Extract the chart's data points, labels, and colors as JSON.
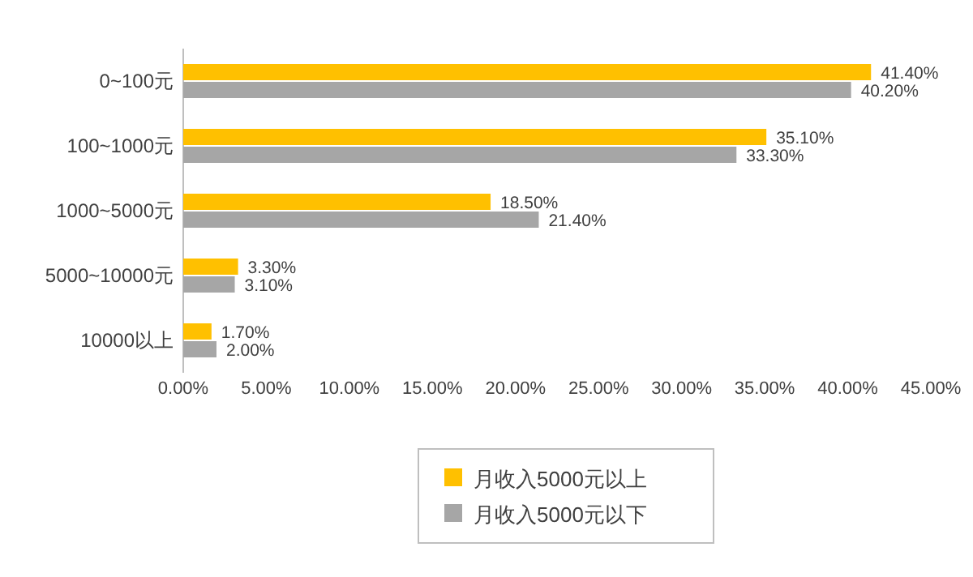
{
  "chart_data": {
    "type": "bar",
    "orientation": "horizontal",
    "categories": [
      "0~100元",
      "100~1000元",
      "1000~5000元",
      "5000~10000元",
      "10000以上"
    ],
    "series": [
      {
        "name": "月收入5000元以上",
        "color": "#ffc000",
        "values": [
          41.4,
          35.1,
          18.5,
          3.3,
          1.7
        ],
        "value_labels": [
          "41.40%",
          "35.10%",
          "18.50%",
          "3.30%",
          "1.70%"
        ]
      },
      {
        "name": "月收入5000元以下",
        "color": "#a6a6a6",
        "values": [
          40.2,
          33.3,
          21.4,
          3.1,
          2.0
        ],
        "value_labels": [
          "40.20%",
          "33.30%",
          "21.40%",
          "3.10%",
          "2.00%"
        ]
      }
    ],
    "xlim": [
      0,
      45
    ],
    "xticks": [
      {
        "value": 0,
        "label": "0.00%"
      },
      {
        "value": 5,
        "label": "5.00%"
      },
      {
        "value": 10,
        "label": "10.00%"
      },
      {
        "value": 15,
        "label": "15.00%"
      },
      {
        "value": 20,
        "label": "20.00%"
      },
      {
        "value": 25,
        "label": "25.00%"
      },
      {
        "value": 30,
        "label": "30.00%"
      },
      {
        "value": 35,
        "label": "35.00%"
      },
      {
        "value": 40,
        "label": "40.00%"
      },
      {
        "value": 45,
        "label": "45.00%"
      }
    ],
    "legend": "bottom"
  }
}
